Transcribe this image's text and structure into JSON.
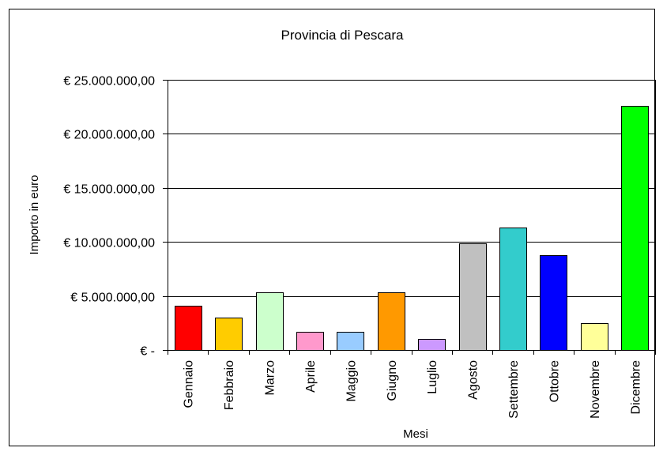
{
  "chart_data": {
    "type": "bar",
    "title": "Provincia di Pescara",
    "xlabel": "Mesi",
    "ylabel": "Importo in euro",
    "categories": [
      "Gennaio",
      "Febbraio",
      "Marzo",
      "Aprile",
      "Maggio",
      "Giugno",
      "Luglio",
      "Agosto",
      "Settembre",
      "Ottobre",
      "Novembre",
      "Dicembre"
    ],
    "values": [
      4100000,
      3000000,
      5350000,
      1700000,
      1700000,
      5350000,
      1000000,
      9900000,
      11300000,
      8800000,
      2500000,
      22600000
    ],
    "colors": [
      "#ff0000",
      "#ffcc00",
      "#ccffcc",
      "#ff99cc",
      "#99ccff",
      "#ff9900",
      "#cc99ff",
      "#c0c0c0",
      "#33cccc",
      "#0000ff",
      "#ffff99",
      "#00ff00"
    ],
    "ylim": [
      0,
      25000000
    ],
    "yticks": [
      0,
      5000000,
      10000000,
      15000000,
      20000000,
      25000000
    ],
    "ytick_labels": [
      "€ -",
      "€ 5.000.000,00",
      "€ 10.000.000,00",
      "€ 15.000.000,00",
      "€ 20.000.000,00",
      "€ 25.000.000,00"
    ],
    "grid": true,
    "legend": "none"
  }
}
